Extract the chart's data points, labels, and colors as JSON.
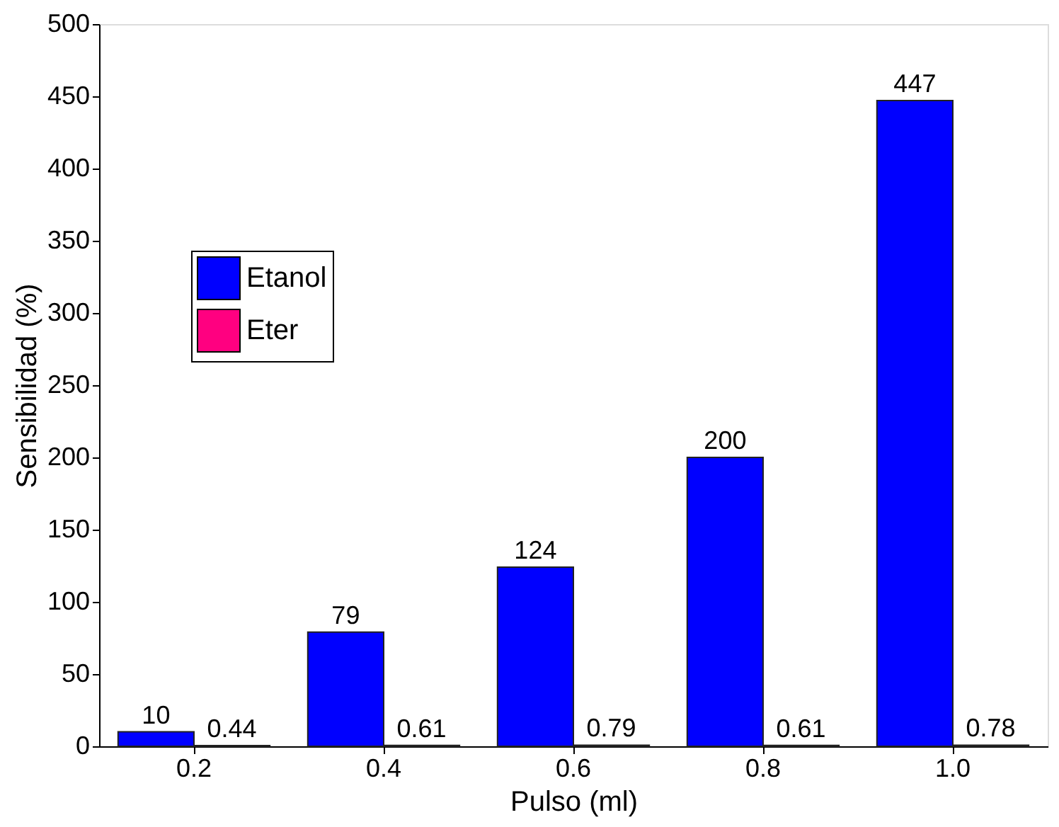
{
  "chart_data": {
    "type": "bar",
    "xlabel": "Pulso (ml)",
    "ylabel": "Sensibilidad (%)",
    "categories": [
      "0.2",
      "0.4",
      "0.6",
      "0.8",
      "1.0"
    ],
    "series": [
      {
        "name": "Etanol",
        "color": "#0000ff",
        "values": [
          10,
          79,
          124,
          200,
          447
        ]
      },
      {
        "name": "Eter",
        "color": "#ff0080",
        "values": [
          0.44,
          0.61,
          0.79,
          0.61,
          0.78
        ]
      }
    ],
    "ylim": [
      0,
      500
    ],
    "yticks": [
      0,
      50,
      100,
      150,
      200,
      250,
      300,
      350,
      400,
      450,
      500
    ],
    "data_labels": true,
    "legend": "left",
    "grid": false
  }
}
